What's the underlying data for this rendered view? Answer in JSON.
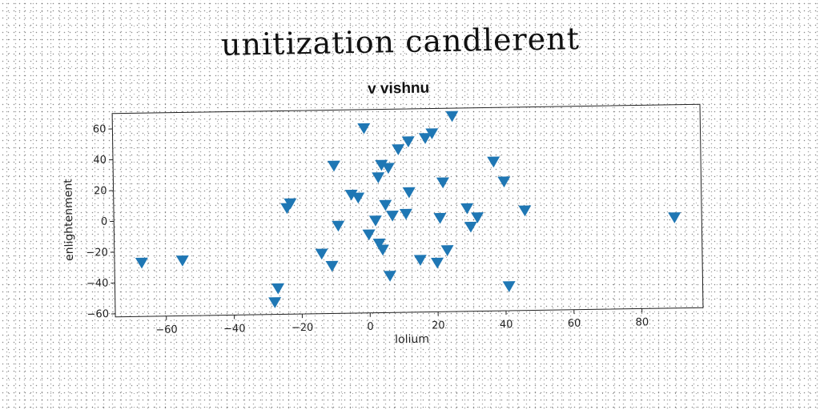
{
  "page": {
    "title": "unitization candlerent"
  },
  "chart_data": {
    "type": "scatter",
    "title": "v vishnu",
    "xlabel": "lolium",
    "ylabel": "enlightenment",
    "xlim": [
      -75,
      98
    ],
    "ylim": [
      -62,
      70
    ],
    "x_ticks": [
      -60,
      -40,
      -20,
      0,
      20,
      40,
      60,
      80
    ],
    "y_ticks": [
      -60,
      -40,
      -20,
      0,
      20,
      40,
      60
    ],
    "marker": "triangle-down",
    "colors": {
      "marker": "#1f77b4"
    },
    "points": [
      {
        "x": -67,
        "y": -27
      },
      {
        "x": -55,
        "y": -26
      },
      {
        "x": -28,
        "y": -54
      },
      {
        "x": -27,
        "y": -45
      },
      {
        "x": -24,
        "y": 7
      },
      {
        "x": -23,
        "y": 10
      },
      {
        "x": -14,
        "y": -23
      },
      {
        "x": -11,
        "y": -31
      },
      {
        "x": -10,
        "y": 34
      },
      {
        "x": -9,
        "y": -5
      },
      {
        "x": -5,
        "y": 15
      },
      {
        "x": -3,
        "y": 13
      },
      {
        "x": -1,
        "y": 58
      },
      {
        "x": 0,
        "y": -11
      },
      {
        "x": 2,
        "y": -2
      },
      {
        "x": 3,
        "y": 26
      },
      {
        "x": 3,
        "y": -17
      },
      {
        "x": 4,
        "y": 34
      },
      {
        "x": 4,
        "y": -21
      },
      {
        "x": 5,
        "y": 8
      },
      {
        "x": 6,
        "y": 32
      },
      {
        "x": 6,
        "y": -38
      },
      {
        "x": 7,
        "y": 1
      },
      {
        "x": 9,
        "y": 44
      },
      {
        "x": 11,
        "y": 2
      },
      {
        "x": 12,
        "y": 16
      },
      {
        "x": 12,
        "y": 49
      },
      {
        "x": 15,
        "y": -28
      },
      {
        "x": 17,
        "y": 51
      },
      {
        "x": 19,
        "y": 54
      },
      {
        "x": 20,
        "y": -30
      },
      {
        "x": 21,
        "y": -1
      },
      {
        "x": 22,
        "y": 22
      },
      {
        "x": 23,
        "y": -22
      },
      {
        "x": 25,
        "y": 65
      },
      {
        "x": 29,
        "y": 5
      },
      {
        "x": 30,
        "y": -7
      },
      {
        "x": 32,
        "y": -1
      },
      {
        "x": 37,
        "y": 35
      },
      {
        "x": 40,
        "y": 22
      },
      {
        "x": 41,
        "y": -46
      },
      {
        "x": 46,
        "y": 3
      },
      {
        "x": 90,
        "y": -3
      }
    ]
  }
}
